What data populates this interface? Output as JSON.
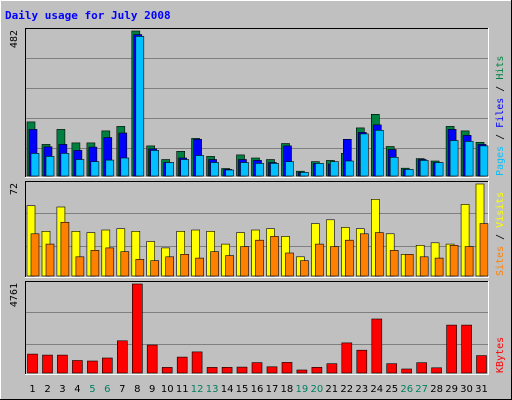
{
  "chart_data": {
    "type": "bar",
    "title": "Daily usage for July 2008",
    "days": [
      "1",
      "2",
      "3",
      "4",
      "5",
      "6",
      "7",
      "8",
      "9",
      "10",
      "11",
      "12",
      "13",
      "14",
      "15",
      "16",
      "17",
      "18",
      "19",
      "20",
      "21",
      "22",
      "23",
      "24",
      "25",
      "26",
      "27",
      "28",
      "29",
      "30",
      "31"
    ],
    "weekend_days": [
      "5",
      "6",
      "12",
      "13",
      "19",
      "20",
      "26",
      "27"
    ],
    "colors": {
      "background": "#c0c0c0",
      "title": "#0000ff",
      "hits": "#008040",
      "files": "#0000ff",
      "pages": "#00c0ff",
      "visits": "#ffff00",
      "sites": "#ff8000",
      "kbytes": "#ff0000",
      "weekday_label": "#000000",
      "weekend_label": "#00805f"
    },
    "panels": [
      {
        "name": "hits-files-pages",
        "max_label": "482",
        "ylim": [
          0,
          482
        ],
        "legend": [
          {
            "label": "Pages",
            "color": "#00c0ff"
          },
          {
            "label": "Files",
            "color": "#0000ff"
          },
          {
            "label": "Hits",
            "color": "#008040"
          }
        ],
        "series": [
          {
            "name": "Hits",
            "values": [
              180,
              105,
              155,
              110,
              110,
              150,
              165,
              482,
              100,
              55,
              82,
              125,
              65,
              25,
              70,
              60,
              55,
              108,
              16,
              48,
              52,
              75,
              160,
              205,
              98,
              26,
              58,
              50,
              165,
              150,
              112
            ]
          },
          {
            "name": "Files",
            "values": [
              155,
              97,
              105,
              85,
              96,
              128,
              143,
              470,
              90,
              45,
              60,
              122,
              55,
              22,
              55,
              52,
              45,
              100,
              12,
              42,
              40,
              122,
              145,
              170,
              88,
              22,
              55,
              45,
              155,
              135,
              105
            ]
          },
          {
            "name": "Pages",
            "values": [
              75,
              65,
              75,
              55,
              48,
              53,
              60,
              464,
              85,
              45,
              55,
              68,
              45,
              20,
              45,
              42,
              42,
              48,
              12,
              42,
              48,
              50,
              140,
              152,
              62,
              22,
              52,
              45,
              118,
              115,
              100
            ]
          }
        ]
      },
      {
        "name": "visits-sites",
        "max_label": "72",
        "ylim": [
          0,
          72
        ],
        "legend": [
          {
            "label": "Sites",
            "color": "#ff8000"
          },
          {
            "label": "Visits",
            "color": "#ffff00"
          }
        ],
        "series": [
          {
            "name": "Visits",
            "values": [
              55,
              35,
              54,
              35,
              34,
              36,
              37,
              35,
              27,
              22,
              35,
              36,
              35,
              25,
              34,
              36,
              37,
              31,
              15,
              41,
              44,
              38,
              37,
              60,
              33,
              17,
              24,
              26,
              25,
              56,
              72
            ]
          },
          {
            "name": "Sites",
            "values": [
              33,
              25,
              42,
              15,
              20,
              22,
              19,
              13,
              12,
              15,
              17,
              14,
              19,
              16,
              23,
              28,
              31,
              18,
              12,
              25,
              23,
              28,
              33,
              34,
              20,
              17,
              15,
              14,
              24,
              23,
              41
            ]
          }
        ]
      },
      {
        "name": "kbytes",
        "max_label": "4761",
        "ylim": [
          0,
          4761
        ],
        "legend": [
          {
            "label": "KBytes",
            "color": "#ff0000"
          }
        ],
        "series": [
          {
            "name": "KBytes",
            "values": [
              1010,
              955,
              955,
              670,
              640,
              800,
              1720,
              4761,
              1500,
              300,
              850,
              1130,
              300,
              305,
              315,
              555,
              330,
              565,
              160,
              305,
              500,
              1610,
              1220,
              2890,
              500,
              212,
              550,
              280,
              2560,
              2560,
              930
            ]
          }
        ]
      }
    ]
  }
}
